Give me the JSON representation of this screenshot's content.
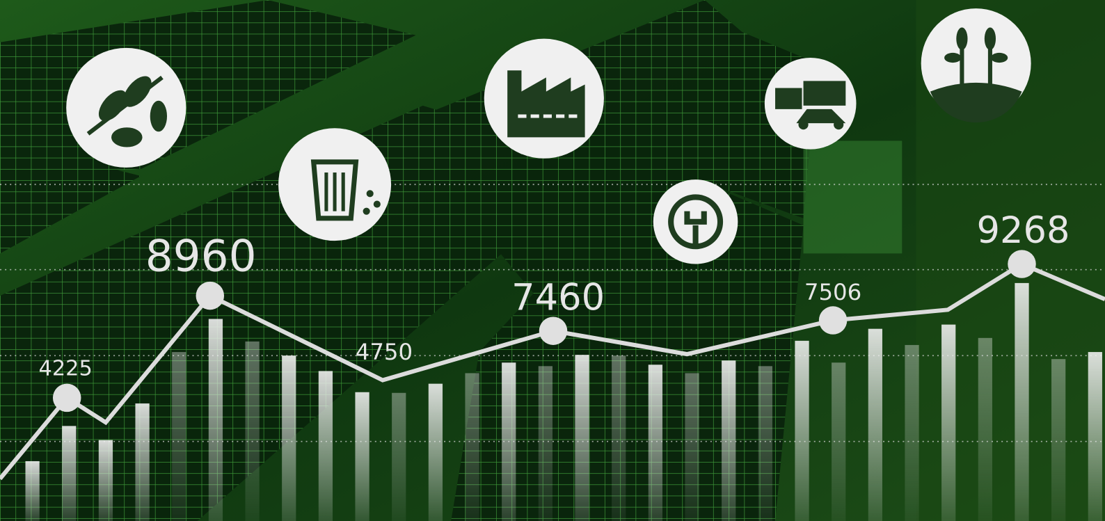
{
  "labels": [
    4225,
    8960,
    4750,
    7460,
    7506,
    9268
  ]
}
